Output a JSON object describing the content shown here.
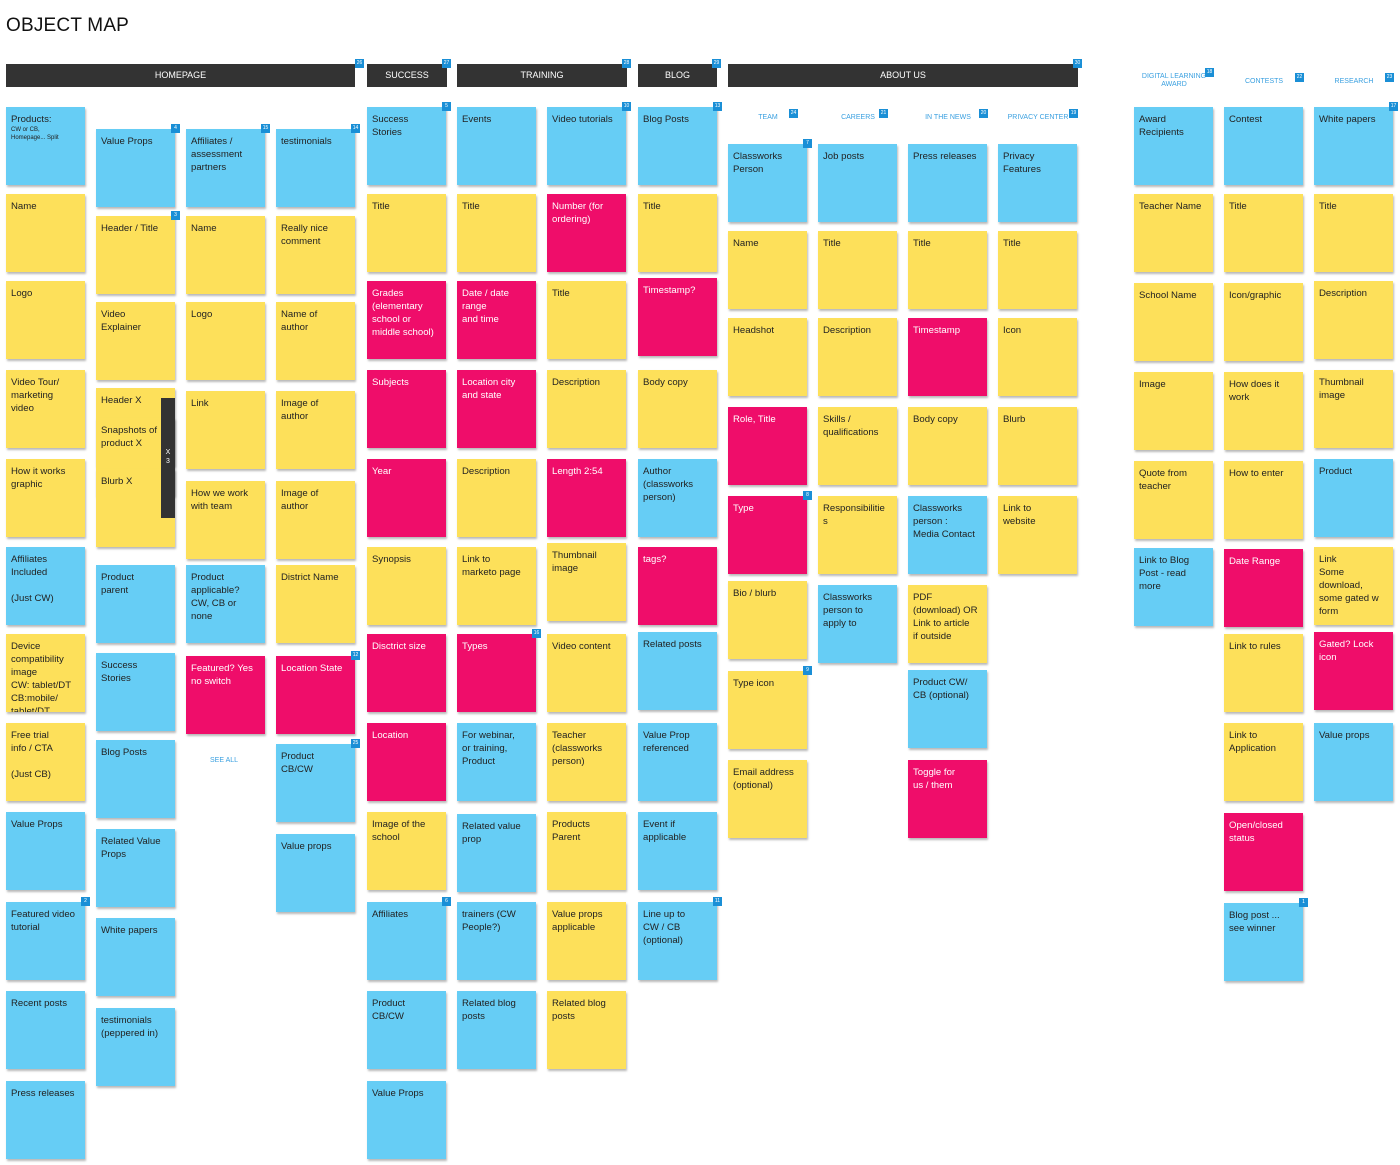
{
  "title": "OBJECT MAP",
  "see_all": "SEE ALL",
  "x3_label": "X\n3",
  "headers": [
    {
      "label": "HOMEPAGE",
      "badge": "26"
    },
    {
      "label": "SUCCESS",
      "badge": "27"
    },
    {
      "label": "TRAINING",
      "badge": "28"
    },
    {
      "label": "BLOG",
      "badge": "29"
    },
    {
      "label": "ABOUT US",
      "badge": "30"
    }
  ],
  "subheaders": [
    {
      "label": "TEAM",
      "badge": "24"
    },
    {
      "label": "CAREERS",
      "badge": "21"
    },
    {
      "label": "IN THE NEWS",
      "badge": "20"
    },
    {
      "label": "PRIVACY CENTER",
      "badge": "19"
    },
    {
      "label": "DIGITAL LEARNING\nAWARD",
      "badge": "18"
    },
    {
      "label": "CONTESTS",
      "badge": "22"
    },
    {
      "label": "RESEARCH",
      "badge": "23"
    }
  ],
  "notes": [
    {
      "color": "b",
      "text": "Products:",
      "small": "CW or CB,\nHomepage... Split"
    },
    {
      "color": "y",
      "text": "Name"
    },
    {
      "color": "y",
      "text": "Logo"
    },
    {
      "color": "y",
      "text": "Video Tour/\nmarketing\nvideo"
    },
    {
      "color": "y",
      "text": "How it works\ngraphic"
    },
    {
      "color": "b",
      "text": "Affiliates\nIncluded\n\n(Just CW)"
    },
    {
      "color": "y",
      "text": "Device\ncompatibility\nimage\nCW: tablet/DT\nCB:mobile/\ntablet/DT"
    },
    {
      "color": "y",
      "text": "Free trial\ninfo / CTA\n\n(Just CB)"
    },
    {
      "color": "b",
      "text": "Value Props"
    },
    {
      "color": "b",
      "text": "Featured video\ntutorial",
      "badge": "2"
    },
    {
      "color": "b",
      "text": "Recent posts"
    },
    {
      "color": "b",
      "text": "Press releases"
    },
    {
      "color": "b",
      "text": "Value Props",
      "badge": "4"
    },
    {
      "color": "y",
      "text": "Header / Title",
      "badge": "3"
    },
    {
      "color": "y",
      "text": "Video\nExplainer"
    },
    {
      "color": "y",
      "text": "Header X"
    },
    {
      "color": "y",
      "text": "Snapshots of\nproduct X"
    },
    {
      "color": "y",
      "text": "Blurb X"
    },
    {
      "color": "b",
      "text": "Product\nparent"
    },
    {
      "color": "b",
      "text": "Success\nStories"
    },
    {
      "color": "b",
      "text": "Blog Posts"
    },
    {
      "color": "b",
      "text": "Related Value\nProps"
    },
    {
      "color": "b",
      "text": "White papers"
    },
    {
      "color": "b",
      "text": "testimonials\n(peppered in)"
    },
    {
      "color": "b",
      "text": "Affiliates /\nassessment\npartners",
      "badge": "15"
    },
    {
      "color": "y",
      "text": "Name"
    },
    {
      "color": "y",
      "text": "Logo"
    },
    {
      "color": "y",
      "text": "Link"
    },
    {
      "color": "y",
      "text": "How we work\nwith team"
    },
    {
      "color": "b",
      "text": "Product\napplicable?\nCW, CB or\nnone"
    },
    {
      "color": "p",
      "text": "Featured? Yes\nno switch"
    },
    {
      "color": "b",
      "text": "testimonials",
      "badge": "14"
    },
    {
      "color": "y",
      "text": "Really nice\ncomment"
    },
    {
      "color": "y",
      "text": "Name of\nauthor"
    },
    {
      "color": "y",
      "text": "Image of\nauthor"
    },
    {
      "color": "y",
      "text": "Image of\nauthor"
    },
    {
      "color": "y",
      "text": "District Name"
    },
    {
      "color": "p",
      "text": "Location State",
      "badge": "12"
    },
    {
      "color": "b",
      "text": "Product\nCB/CW",
      "badge": "25"
    },
    {
      "color": "b",
      "text": "Value props"
    },
    {
      "color": "b",
      "text": "Success\nStories",
      "badge": "5"
    },
    {
      "color": "y",
      "text": "Title"
    },
    {
      "color": "p",
      "text": "Grades\n(elementary\nschool or\nmiddle school)"
    },
    {
      "color": "p",
      "text": "Subjects"
    },
    {
      "color": "p",
      "text": "Year"
    },
    {
      "color": "y",
      "text": "Synopsis"
    },
    {
      "color": "p",
      "text": "Disctrict size"
    },
    {
      "color": "p",
      "text": "Location"
    },
    {
      "color": "y",
      "text": "Image of the\nschool"
    },
    {
      "color": "b",
      "text": "Affiliates",
      "badge": "6"
    },
    {
      "color": "b",
      "text": "Product\nCB/CW"
    },
    {
      "color": "b",
      "text": "Value Props"
    },
    {
      "color": "b",
      "text": "Events"
    },
    {
      "color": "y",
      "text": "Title"
    },
    {
      "color": "p",
      "text": "Date / date\nrange\nand time"
    },
    {
      "color": "p",
      "text": "Location city\nand state"
    },
    {
      "color": "y",
      "text": "Description"
    },
    {
      "color": "y",
      "text": "Link to\nmarketo page"
    },
    {
      "color": "p",
      "text": "Types",
      "badge": "16"
    },
    {
      "color": "b",
      "text": "For webinar,\nor training,\nProduct"
    },
    {
      "color": "b",
      "text": "Related value\nprop"
    },
    {
      "color": "b",
      "text": "trainers (CW\nPeople?)"
    },
    {
      "color": "b",
      "text": "Related blog\nposts"
    },
    {
      "color": "b",
      "text": "Video tutorials",
      "badge": "10"
    },
    {
      "color": "p",
      "text": "Number (for\nordering)"
    },
    {
      "color": "y",
      "text": "Title"
    },
    {
      "color": "y",
      "text": "Description"
    },
    {
      "color": "p",
      "text": "Length 2:54"
    },
    {
      "color": "y",
      "text": "Thumbnail\nimage"
    },
    {
      "color": "y",
      "text": "Video content"
    },
    {
      "color": "y",
      "text": "Teacher\n(classworks\nperson)"
    },
    {
      "color": "y",
      "text": "Products\nParent"
    },
    {
      "color": "y",
      "text": "Value props\napplicable"
    },
    {
      "color": "y",
      "text": "Related blog\nposts"
    },
    {
      "color": "b",
      "text": "Blog Posts",
      "badge": "13"
    },
    {
      "color": "y",
      "text": "Title"
    },
    {
      "color": "p",
      "text": "Timestamp?"
    },
    {
      "color": "y",
      "text": "Body copy"
    },
    {
      "color": "b",
      "text": "Author\n(classworks\nperson)"
    },
    {
      "color": "p",
      "text": "tags?"
    },
    {
      "color": "b",
      "text": "Related posts"
    },
    {
      "color": "b",
      "text": "Value Prop\nreferenced"
    },
    {
      "color": "b",
      "text": "Event if\napplicable"
    },
    {
      "color": "b",
      "text": "Line up to\nCW / CB\n(optional)",
      "badge": "11"
    },
    {
      "color": "b",
      "text": "Classworks\nPerson",
      "badge": "7"
    },
    {
      "color": "y",
      "text": "Name"
    },
    {
      "color": "y",
      "text": "Headshot"
    },
    {
      "color": "p",
      "text": "Role, Title"
    },
    {
      "color": "p",
      "text": "Type",
      "badge": "8"
    },
    {
      "color": "y",
      "text": "Bio / blurb"
    },
    {
      "color": "y",
      "text": "Type icon",
      "badge": "9"
    },
    {
      "color": "y",
      "text": "Email address\n(optional)"
    },
    {
      "color": "b",
      "text": "Job posts"
    },
    {
      "color": "y",
      "text": "Title"
    },
    {
      "color": "y",
      "text": "Description"
    },
    {
      "color": "y",
      "text": "Skills /\nqualifications"
    },
    {
      "color": "y",
      "text": "Responsibilitie\ns"
    },
    {
      "color": "b",
      "text": "Classworks\nperson to\napply to"
    },
    {
      "color": "b",
      "text": "Press releases"
    },
    {
      "color": "y",
      "text": "Title"
    },
    {
      "color": "p",
      "text": "Timestamp"
    },
    {
      "color": "y",
      "text": "Body copy"
    },
    {
      "color": "b",
      "text": "Classworks\nperson :\nMedia Contact"
    },
    {
      "color": "y",
      "text": "PDF\n(download) OR\nLink to article\nif outside"
    },
    {
      "color": "b",
      "text": "Product CW/\nCB (optional)"
    },
    {
      "color": "p",
      "text": "Toggle for\nus / them"
    },
    {
      "color": "b",
      "text": "Privacy\nFeatures"
    },
    {
      "color": "y",
      "text": "Title"
    },
    {
      "color": "y",
      "text": "Icon"
    },
    {
      "color": "y",
      "text": "Blurb"
    },
    {
      "color": "y",
      "text": "Link to\nwebsite"
    },
    {
      "color": "b",
      "text": "Award\nRecipients"
    },
    {
      "color": "y",
      "text": "Teacher Name"
    },
    {
      "color": "y",
      "text": "School Name"
    },
    {
      "color": "y",
      "text": "Image"
    },
    {
      "color": "y",
      "text": "Quote from\nteacher"
    },
    {
      "color": "b",
      "text": "Link to Blog\nPost - read\nmore"
    },
    {
      "color": "b",
      "text": "Contest"
    },
    {
      "color": "y",
      "text": "Title"
    },
    {
      "color": "y",
      "text": "Icon/graphic"
    },
    {
      "color": "y",
      "text": "How does it\nwork"
    },
    {
      "color": "y",
      "text": "How to enter"
    },
    {
      "color": "p",
      "text": "Date Range"
    },
    {
      "color": "y",
      "text": "Link to rules"
    },
    {
      "color": "y",
      "text": "Link to\nApplication"
    },
    {
      "color": "p",
      "text": "Open/closed\nstatus"
    },
    {
      "color": "b",
      "text": "Blog post ...\nsee winner",
      "badge": "1"
    },
    {
      "color": "b",
      "text": "White papers",
      "badge": "17"
    },
    {
      "color": "y",
      "text": "Title"
    },
    {
      "color": "y",
      "text": "Description"
    },
    {
      "color": "y",
      "text": "Thumbnail\nimage"
    },
    {
      "color": "b",
      "text": "Product"
    },
    {
      "color": "y",
      "text": "Link\nSome\ndownload,\nsome gated w\nform"
    },
    {
      "color": "p",
      "text": "Gated? Lock\nicon"
    },
    {
      "color": "b",
      "text": "Value props"
    }
  ]
}
